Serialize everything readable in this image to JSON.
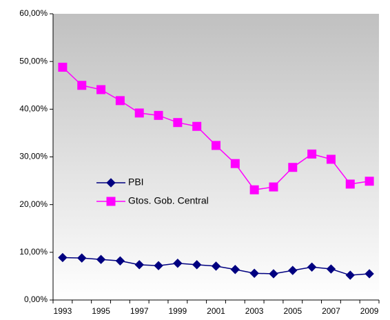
{
  "chart_data": {
    "type": "line",
    "categories": [
      "1993",
      null,
      "1995",
      null,
      "1997",
      null,
      "1999",
      null,
      "2001",
      null,
      "2003",
      null,
      "2005",
      null,
      "2007",
      null,
      "2009"
    ],
    "series": [
      {
        "name": "PBI",
        "color": "#000080",
        "marker": "diamond",
        "values": [
          8.9,
          8.8,
          8.5,
          8.2,
          7.4,
          7.2,
          7.7,
          7.4,
          7.1,
          6.4,
          5.6,
          5.5,
          6.2,
          6.9,
          6.5,
          5.2,
          5.5
        ]
      },
      {
        "name": "Gtos. Gob. Central",
        "color": "#ff00ff",
        "marker": "square",
        "values": [
          48.8,
          45.0,
          44.1,
          41.8,
          39.2,
          38.7,
          37.2,
          36.4,
          32.4,
          28.6,
          23.1,
          23.7,
          27.8,
          30.6,
          29.5,
          24.3,
          24.9
        ]
      }
    ],
    "ylim": [
      0,
      60
    ],
    "yticks": [
      {
        "value": 0,
        "label": "0,00%"
      },
      {
        "value": 10,
        "label": "10,00%"
      },
      {
        "value": 20,
        "label": "20,00%"
      },
      {
        "value": 30,
        "label": "30,00%"
      },
      {
        "value": 40,
        "label": "40,00%"
      },
      {
        "value": 50,
        "label": "50,00%"
      },
      {
        "value": 60,
        "label": "60,00%"
      }
    ],
    "grid": false,
    "legend": "center-left"
  }
}
